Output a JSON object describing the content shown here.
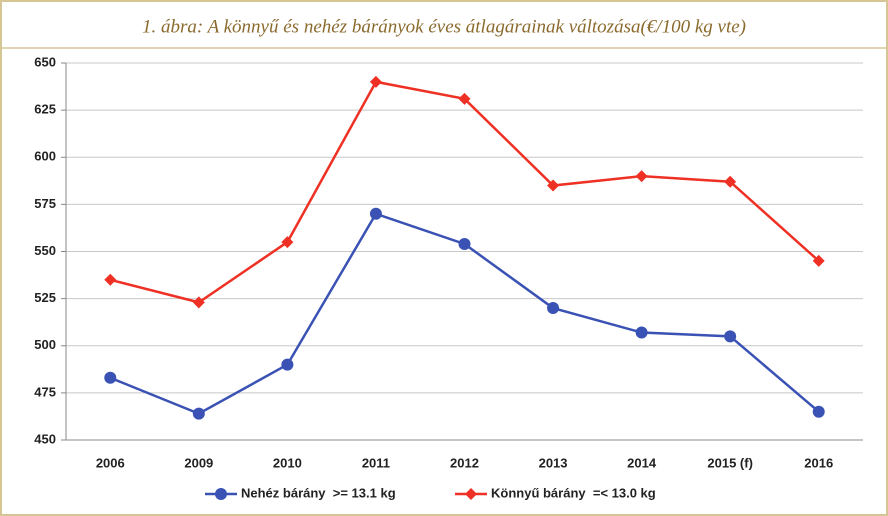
{
  "chart_data": {
    "type": "line",
    "title": "1. ábra: A könnyű és nehéz bárányok éves átlagárainak változása(€/100 kg vte)",
    "categories": [
      "2006",
      "2009",
      "2010",
      "2011",
      "2012",
      "2013",
      "2014",
      "2015 (f)",
      "2016"
    ],
    "series": [
      {
        "name": "Nehéz bárány  >= 13.1 kg",
        "color": "#3a52b4",
        "marker": "circle",
        "values": [
          483,
          464,
          490,
          570,
          554,
          520,
          507,
          505,
          465
        ]
      },
      {
        "name": "Könnyű bárány  =< 13.0 kg",
        "color": "#ee3124",
        "marker": "diamond",
        "values": [
          535,
          523,
          555,
          640,
          631,
          585,
          590,
          587,
          545
        ]
      }
    ],
    "ylim": [
      450,
      650
    ],
    "yticks": [
      450,
      475,
      500,
      525,
      550,
      575,
      600,
      625,
      650
    ],
    "grid": true,
    "legend": "bottom"
  }
}
